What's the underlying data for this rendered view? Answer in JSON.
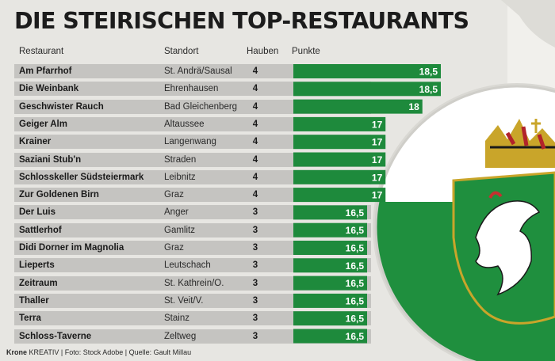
{
  "title": "DIE STEIRISCHEN TOP-RESTAURANTS",
  "headers": {
    "restaurant": "Restaurant",
    "standort": "Standort",
    "hauben": "Hauben",
    "punkte": "Punkte"
  },
  "colors": {
    "bar": "#1e8a3c",
    "bar_text": "#ffffff",
    "row_band": "#c5c4c1",
    "flag_green": "#1f8f3e",
    "flag_white": "#ffffff"
  },
  "chart_data": {
    "type": "bar",
    "orientation": "horizontal",
    "categories": [
      "Am Pfarrhof",
      "Die Weinbank",
      "Geschwister Rauch",
      "Geiger Alm",
      "Krainer",
      "Saziani Stub'n",
      "Schlosskeller Südsteiermark",
      "Zur Goldenen Birn",
      "Der Luis",
      "Sattlerhof",
      "Didi Dorner im Magnolia",
      "Lieperts",
      "Zeitraum",
      "Thaller",
      "Terra",
      "Schloss-Taverne"
    ],
    "locations": [
      "St. Andrä/Sausal",
      "Ehrenhausen",
      "Bad Gleichenberg",
      "Altaussee",
      "Langenwang",
      "Straden",
      "Leibnitz",
      "Graz",
      "Anger",
      "Gamlitz",
      "Graz",
      "Leutschach",
      "St. Kathrein/O.",
      "St. Veit/V.",
      "Stainz",
      "Zeltweg"
    ],
    "hauben": [
      4,
      4,
      4,
      4,
      4,
      4,
      4,
      4,
      3,
      3,
      3,
      3,
      3,
      3,
      3,
      3
    ],
    "values": [
      18.5,
      18.5,
      18,
      17,
      17,
      17,
      17,
      17,
      16.5,
      16.5,
      16.5,
      16.5,
      16.5,
      16.5,
      16.5,
      16.5
    ],
    "value_labels": [
      "18,5",
      "18,5",
      "18",
      "17",
      "17",
      "17",
      "17",
      "17",
      "16,5",
      "16,5",
      "16,5",
      "16,5",
      "16,5",
      "16,5",
      "16,5",
      "16,5"
    ],
    "ylabel": "Punkte",
    "xlim": [
      14.5,
      18.5
    ]
  },
  "footer": {
    "brand": "Krone",
    "brand_suffix": "KREATIV",
    "photo": "Foto: Stock Adobe",
    "source": "Quelle: Gault Millau"
  }
}
